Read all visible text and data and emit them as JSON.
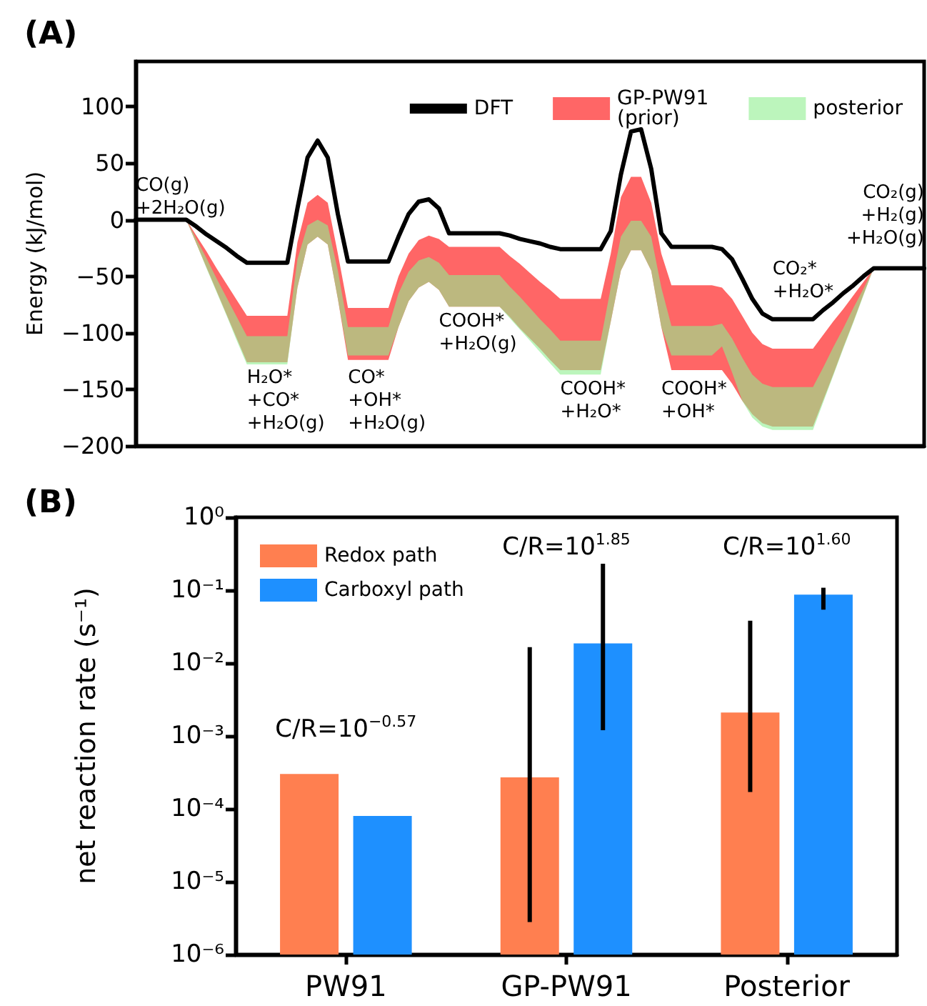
{
  "chart_data": [
    {
      "type": "line",
      "title": "(A)",
      "ylabel": "Energy (kJ/mol)",
      "categories": [
        null,
        null,
        null,
        null,
        null,
        null,
        null,
        null,
        null,
        null,
        null,
        null,
        null,
        null,
        null,
        null,
        null,
        null,
        null,
        null,
        null,
        null,
        null,
        null,
        null,
        null,
        null,
        null,
        null,
        null,
        null,
        null,
        null,
        null,
        null,
        null,
        null,
        null,
        null,
        null,
        null,
        null,
        null,
        null,
        null,
        null,
        null,
        null,
        null,
        null,
        null,
        null,
        null,
        null,
        null,
        null,
        null,
        null,
        null,
        null,
        null,
        null,
        null,
        null,
        null,
        null,
        null,
        null,
        null,
        null,
        null,
        null,
        null,
        null,
        null,
        null,
        null,
        null,
        null
      ],
      "series": [
        {
          "name": "DFT",
          "color": "#000000",
          "values": [
            0,
            0,
            0,
            0,
            0,
            0,
            -6,
            -13,
            -19,
            -25,
            -32,
            -38,
            -38,
            -38,
            -38,
            -38,
            10,
            55,
            70,
            55,
            5,
            -37,
            -37,
            -37,
            -37,
            -37,
            -15,
            5,
            16,
            18,
            10,
            -12,
            -12,
            -12,
            -12,
            -12,
            -12,
            -14,
            -17,
            -19,
            -21,
            -24,
            -26,
            -26,
            -26,
            -26,
            -26,
            -10,
            40,
            78,
            80,
            45,
            -12,
            -24,
            -24,
            -24,
            -24,
            -24,
            -26,
            -35,
            -52,
            -70,
            -83,
            -88,
            -88,
            -88,
            -88,
            -88,
            -80,
            -73,
            -65,
            -58,
            -50,
            -43,
            -43,
            -43,
            -43,
            -43,
            -43
          ]
        },
        {
          "name": "GP-PW91\n(prior)",
          "color": "#ff6666",
          "values": [
            null,
            null,
            null,
            null,
            null,
            null,
            null,
            null,
            null,
            null,
            null,
            null,
            null,
            null,
            null,
            null,
            null,
            null,
            null,
            null,
            null,
            null,
            null,
            null,
            null,
            null,
            null,
            null,
            null,
            null,
            null,
            null,
            null,
            null,
            null,
            null,
            null,
            null,
            null,
            null,
            null,
            null,
            null,
            null,
            null,
            null,
            null,
            null,
            null,
            null,
            null,
            null,
            null,
            null,
            null,
            null,
            null,
            null,
            null,
            null,
            null,
            null,
            null,
            null,
            null,
            null,
            null,
            null,
            null,
            null,
            null,
            null,
            null,
            null,
            null,
            null,
            null,
            null,
            null
          ],
          "upper": [
            null,
            null,
            null,
            null,
            null,
            0,
            -14,
            -28,
            -43,
            -57,
            -71,
            -85,
            -85,
            -85,
            -85,
            -85,
            -20,
            15,
            22,
            15,
            -30,
            -78,
            -78,
            -78,
            -78,
            -78,
            -50,
            -30,
            -18,
            -14,
            -17,
            -24,
            -24,
            -24,
            -24,
            -24,
            -24,
            -32,
            -39,
            -47,
            -55,
            -62,
            -70,
            -70,
            -70,
            -70,
            -70,
            -30,
            20,
            38,
            38,
            15,
            -30,
            -58,
            -58,
            -58,
            -58,
            -58,
            -60,
            -70,
            -85,
            -100,
            -110,
            -114,
            -114,
            -114,
            -114,
            -114,
            -102,
            -90,
            -79,
            -67,
            -55,
            -43,
            null,
            null,
            null,
            null,
            null
          ],
          "lower": [
            null,
            null,
            null,
            null,
            null,
            0,
            -21,
            -42,
            -63,
            -84,
            -105,
            -126,
            -126,
            -126,
            -126,
            -126,
            -60,
            -22,
            -15,
            -22,
            -70,
            -124,
            -124,
            -124,
            -124,
            -124,
            -95,
            -72,
            -60,
            -55,
            -62,
            -77,
            -77,
            -77,
            -77,
            -77,
            -77,
            -86,
            -96,
            -105,
            -114,
            -124,
            -133,
            -133,
            -133,
            -133,
            -133,
            -90,
            -45,
            -27,
            -27,
            -45,
            -95,
            -133,
            -133,
            -133,
            -133,
            -133,
            -133,
            -145,
            -160,
            -172,
            -180,
            -183,
            -183,
            -183,
            -183,
            -183,
            -160,
            -137,
            -113,
            -90,
            -66,
            -43,
            null,
            null,
            null,
            null,
            null
          ]
        },
        {
          "name": "posterior",
          "color": "#90ee90",
          "values": [
            null,
            null,
            null,
            null,
            null,
            null,
            null,
            null,
            null,
            null,
            null,
            null,
            null,
            null,
            null,
            null,
            null,
            null,
            null,
            null,
            null,
            null,
            null,
            null,
            null,
            null,
            null,
            null,
            null,
            null,
            null,
            null,
            null,
            null,
            null,
            null,
            null,
            null,
            null,
            null,
            null,
            null,
            null,
            null,
            null,
            null,
            null,
            null,
            null,
            null,
            null,
            null,
            null,
            null,
            null,
            null,
            null,
            null,
            null,
            null,
            null,
            null,
            null,
            null,
            null,
            null,
            null,
            null,
            null,
            null,
            null,
            null,
            null,
            null,
            null,
            null,
            null,
            null,
            null
          ],
          "upper": [
            null,
            null,
            null,
            null,
            null,
            0,
            -17,
            -34,
            -52,
            -69,
            -86,
            -103,
            -103,
            -103,
            -103,
            -103,
            -35,
            -5,
            0,
            -5,
            -45,
            -95,
            -95,
            -95,
            -95,
            -95,
            -65,
            -46,
            -36,
            -33,
            -38,
            -49,
            -49,
            -49,
            -49,
            -49,
            -49,
            -59,
            -68,
            -78,
            -88,
            -97,
            -107,
            -107,
            -107,
            -107,
            -107,
            -60,
            -15,
            -1,
            -1,
            -15,
            -60,
            -94,
            -94,
            -94,
            -94,
            -94,
            -92,
            -105,
            -122,
            -137,
            -145,
            -148,
            -148,
            -148,
            -148,
            -148,
            -131,
            -113,
            -96,
            -78,
            -61,
            -43,
            null,
            null,
            null,
            null,
            null
          ],
          "lower": [
            null,
            null,
            null,
            null,
            null,
            0,
            -21,
            -43,
            -64,
            -85,
            -107,
            -128,
            -128,
            -128,
            -128,
            -128,
            -60,
            -22,
            -15,
            -22,
            -70,
            -120,
            -120,
            -120,
            -120,
            -120,
            -95,
            -72,
            -60,
            -55,
            -62,
            -77,
            -77,
            -77,
            -77,
            -77,
            -77,
            -87,
            -97,
            -107,
            -117,
            -127,
            -137,
            -137,
            -137,
            -137,
            -137,
            -90,
            -45,
            -27,
            -27,
            -45,
            -95,
            -120,
            -120,
            -120,
            -120,
            -120,
            -112,
            -135,
            -160,
            -175,
            -183,
            -186,
            -186,
            -186,
            -186,
            -186,
            -162,
            -138,
            -114,
            -91,
            -67,
            -43,
            null,
            null,
            null,
            null,
            null
          ]
        }
      ],
      "ylim": [
        -200,
        140
      ],
      "yticks": [
        {
          "value": -200,
          "label": "−200"
        },
        {
          "value": -150,
          "label": "−150"
        },
        {
          "value": -100,
          "label": "−100"
        },
        {
          "value": -50,
          "label": "−50"
        },
        0,
        50,
        100
      ],
      "annotations": [
        "CO(g)\n+2H₂O(g)",
        "H₂O*\n+CO*\n+H₂O(g)",
        "CO*\n+OH*\n+H₂O(g)",
        "COOH*\n+H₂O(g)",
        "COOH*\n+H₂O*",
        "COOH*\n+OH*",
        "CO₂*\n+H₂O*",
        "CO₂(g)\n+H₂(g)\n+H₂O(g)"
      ],
      "tick_labels": "y",
      "legend": "top right",
      "grid": false
    },
    {
      "type": "bar",
      "title": "(B)",
      "ylabel": "net reaction rate (s⁻¹)",
      "categories": [
        "PW91",
        "GP-PW91",
        "Posterior"
      ],
      "series": [
        {
          "name": "Redox path",
          "color": "#ff7f50",
          "values": [
            0.0003,
            0.00027,
            0.0021
          ],
          "errors": [
            null,
            [
              2.8e-06,
              0.0165
            ],
            [
              0.00017,
              0.038
            ]
          ]
        },
        {
          "name": "Carboxyl path",
          "color": "#1e90ff",
          "values": [
            8e-05,
            0.0186,
            0.087
          ],
          "errors": [
            null,
            [
              0.0012,
              0.23
            ],
            [
              0.054,
              0.108
            ]
          ]
        }
      ],
      "log": "y",
      "ylim": [
        1e-06,
        1
      ],
      "yticks": [
        {
          "value": 1e-06,
          "label": "10⁻⁶"
        },
        {
          "value": 1e-05,
          "label": "10⁻⁵"
        },
        {
          "value": 0.0001,
          "label": "10⁻⁴"
        },
        {
          "value": 0.001,
          "label": "10⁻³"
        },
        {
          "value": 0.01,
          "label": "10⁻²"
        },
        {
          "value": 0.1,
          "label": "10⁻¹"
        },
        {
          "value": 1,
          "label": "10⁰"
        }
      ],
      "annotations": [
        "C/R=10$^{−0.57}$",
        "C/R=10$^{1.85}$",
        "C/R=10$^{1.60}$"
      ],
      "legend": "top left",
      "grid": false
    }
  ]
}
